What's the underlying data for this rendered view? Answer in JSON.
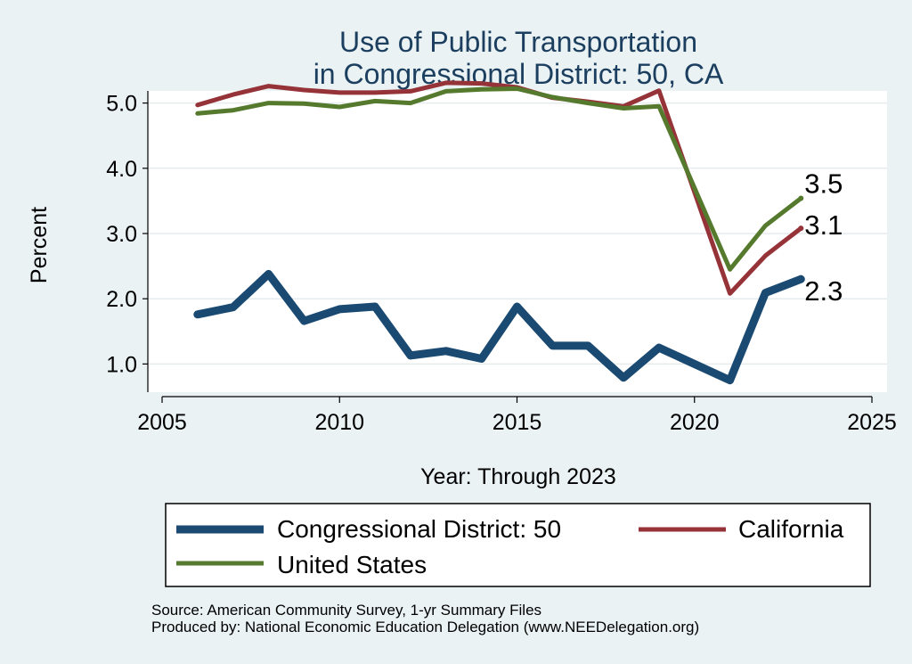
{
  "chart_data": {
    "type": "line",
    "title": [
      "Use of Public Transportation",
      "in Congressional District: 50, CA"
    ],
    "xlabel": "Year: Through 2023",
    "ylabel": "Percent",
    "xlim": [
      2005,
      2025
    ],
    "ylim": [
      0.5,
      5.5
    ],
    "xticks": [
      2005,
      2010,
      2015,
      2020,
      2025
    ],
    "yticks": [
      1.0,
      2.0,
      3.0,
      4.0,
      5.0
    ],
    "ytick_labels": [
      "1.0",
      "2.0",
      "3.0",
      "4.0",
      "5.0"
    ],
    "grid": true,
    "x": [
      2006,
      2007,
      2008,
      2009,
      2010,
      2011,
      2012,
      2013,
      2014,
      2015,
      2016,
      2017,
      2018,
      2019,
      2021,
      2022,
      2023
    ],
    "series": [
      {
        "name": "Congressional District: 50",
        "color": "#1a4a72",
        "values": [
          1.76,
          1.87,
          2.38,
          1.66,
          1.84,
          1.88,
          1.13,
          1.2,
          1.08,
          1.88,
          1.28,
          1.28,
          0.79,
          1.25,
          0.75,
          2.09,
          2.3
        ],
        "end_label": "2.3"
      },
      {
        "name": "California",
        "color": "#953338",
        "values": [
          4.97,
          5.13,
          5.26,
          5.2,
          5.16,
          5.16,
          5.18,
          5.31,
          5.3,
          5.24,
          5.08,
          5.02,
          4.95,
          5.19,
          2.08,
          2.66,
          3.08
        ],
        "end_label": "3.1"
      },
      {
        "name": "United States",
        "color": "#557a2e",
        "values": [
          4.84,
          4.89,
          5.0,
          4.99,
          4.94,
          5.03,
          5.0,
          5.18,
          5.21,
          5.22,
          5.09,
          5.0,
          4.92,
          4.95,
          2.45,
          3.12,
          3.54
        ],
        "end_label": "3.5"
      }
    ],
    "legend": {
      "placement": "bottom",
      "entries": [
        "Congressional District: 50",
        "California",
        "United States"
      ]
    },
    "source": [
      "Source: American Community Survey, 1-yr Summary Files",
      "Produced by: National Economic Education Delegation (www.NEEDelegation.org)"
    ]
  }
}
